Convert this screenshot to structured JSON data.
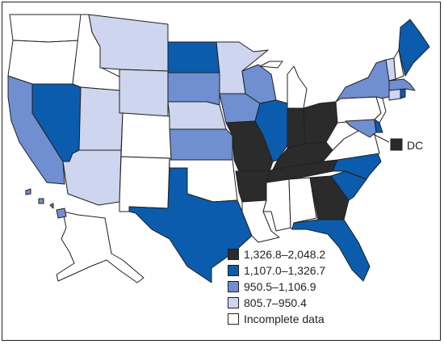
{
  "colors": {
    "bin_1": "#2b2b2b",
    "bin_2": "#0b5cad",
    "bin_3": "#6f8fd0",
    "bin_4": "#cdd5ef",
    "incomplete": "#ffffff",
    "outline": "#231f20"
  },
  "legend": {
    "items": [
      {
        "label": "1,326.8–2,048.2",
        "bin": "bin_1"
      },
      {
        "label": "1,107.0–1,326.7",
        "bin": "bin_2"
      },
      {
        "label": "950.5–1,106.9",
        "bin": "bin_3"
      },
      {
        "label": "805.7–950.4",
        "bin": "bin_4"
      },
      {
        "label": "Incomplete data",
        "bin": "incomplete"
      }
    ]
  },
  "dc": {
    "label": "DC",
    "bin": "bin_1"
  },
  "states": {
    "WA": "incomplete",
    "OR": "incomplete",
    "CA": "bin_3",
    "NV": "bin_2",
    "ID": "incomplete",
    "MT": "bin_4",
    "WY": "bin_4",
    "UT": "bin_4",
    "AZ": "bin_4",
    "CO": "incomplete",
    "NM": "incomplete",
    "ND": "bin_2",
    "SD": "bin_3",
    "NE": "bin_4",
    "KS": "bin_3",
    "OK": "incomplete",
    "TX": "bin_2",
    "MN": "bin_4",
    "IA": "bin_3",
    "MO": "bin_1",
    "AR": "bin_1",
    "LA": "incomplete",
    "WI": "bin_3",
    "IL": "bin_2",
    "MI": "incomplete",
    "IN": "bin_1",
    "OH": "bin_1",
    "KY": "bin_1",
    "TN": "bin_1",
    "MS": "incomplete",
    "AL": "incomplete",
    "GA": "bin_1",
    "FL": "bin_2",
    "SC": "bin_2",
    "NC": "bin_2",
    "VA": "incomplete",
    "WV": "incomplete",
    "PA": "incomplete",
    "NY": "bin_3",
    "NJ": "incomplete",
    "DE": "bin_2",
    "MD": "bin_3",
    "CT": "bin_4",
    "RI": "bin_2",
    "MA": "bin_3",
    "VT": "bin_4",
    "NH": "incomplete",
    "ME": "bin_2",
    "AK": "incomplete",
    "HI": "bin_3"
  }
}
